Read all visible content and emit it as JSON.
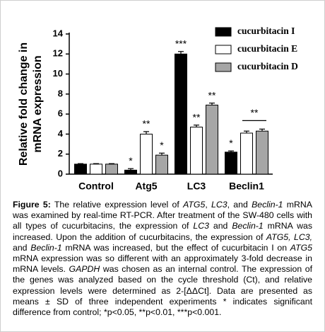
{
  "chart_data": {
    "type": "bar",
    "y_label_lines": [
      "Relative fold change in",
      "mRNA expression"
    ],
    "categories": [
      "Control",
      "Atg5",
      "LC3",
      "Beclin1"
    ],
    "series": [
      {
        "name": "cucurbitacin I",
        "color": "#000000",
        "values": [
          1.0,
          0.4,
          12.0,
          2.2
        ],
        "errors": [
          0.05,
          0.15,
          0.25,
          0.12
        ],
        "annotations": [
          null,
          "*",
          "***",
          "*"
        ]
      },
      {
        "name": "cucurbitacin E",
        "color": "#ffffff",
        "values": [
          1.0,
          4.0,
          4.7,
          4.1
        ],
        "errors": [
          0.05,
          0.25,
          0.2,
          0.2
        ],
        "annotations": [
          null,
          "**",
          "**",
          null
        ]
      },
      {
        "name": "cucurbitacin D",
        "color": "#a6a6a6",
        "values": [
          1.0,
          1.9,
          6.9,
          4.3
        ],
        "errors": [
          0.05,
          0.2,
          0.2,
          0.2
        ],
        "annotations": [
          null,
          "*",
          "**",
          null
        ]
      }
    ],
    "bracket_annotation": {
      "label": "**",
      "category": "Beclin1",
      "series": [
        "cucurbitacin E",
        "cucurbitacin D"
      ]
    },
    "ylim": [
      0,
      14
    ],
    "yticks": [
      0,
      2,
      4,
      6,
      8,
      10,
      12,
      14
    ],
    "grid": false,
    "legend": "top-right"
  },
  "caption": [
    {
      "text": "Figure 5:",
      "style": "bold"
    },
    {
      "text": " The relative expression level of "
    },
    {
      "text": "ATG5",
      "style": "italic"
    },
    {
      "text": ", "
    },
    {
      "text": "LC3",
      "style": "italic"
    },
    {
      "text": ", and "
    },
    {
      "text": "Beclin-1",
      "style": "italic"
    },
    {
      "text": " mRNA was examined by real-time RT-PCR. After treatment of the SW-480 cells with all types of cucurbitacins, the expression of "
    },
    {
      "text": "LC3",
      "style": "italic"
    },
    {
      "text": " and "
    },
    {
      "text": "Beclin-1",
      "style": "italic"
    },
    {
      "text": " mRNA was increased. Upon the addition of cucurbitacins, the expression of "
    },
    {
      "text": "ATG5, LC3,",
      "style": "italic"
    },
    {
      "text": " and "
    },
    {
      "text": "Beclin-1",
      "style": "italic"
    },
    {
      "text": " mRNA was increased, but the effect of cucurbitacin I on "
    },
    {
      "text": "ATG5",
      "style": "italic"
    },
    {
      "text": " mRNA expression was so different with an approximately 3-fold decrease in mRNA levels. "
    },
    {
      "text": "GAPDH",
      "style": "italic"
    },
    {
      "text": " was chosen as an internal control. The expression of the genes was analyzed based on the cycle threshold (Ct), and relative expression levels were determined as 2-[ΔΔCt]. Data are presented as means ± SD of three independent experiments * indicates significant difference from control; *p<0.05, **p<0.01, ***p<0.001."
    }
  ]
}
